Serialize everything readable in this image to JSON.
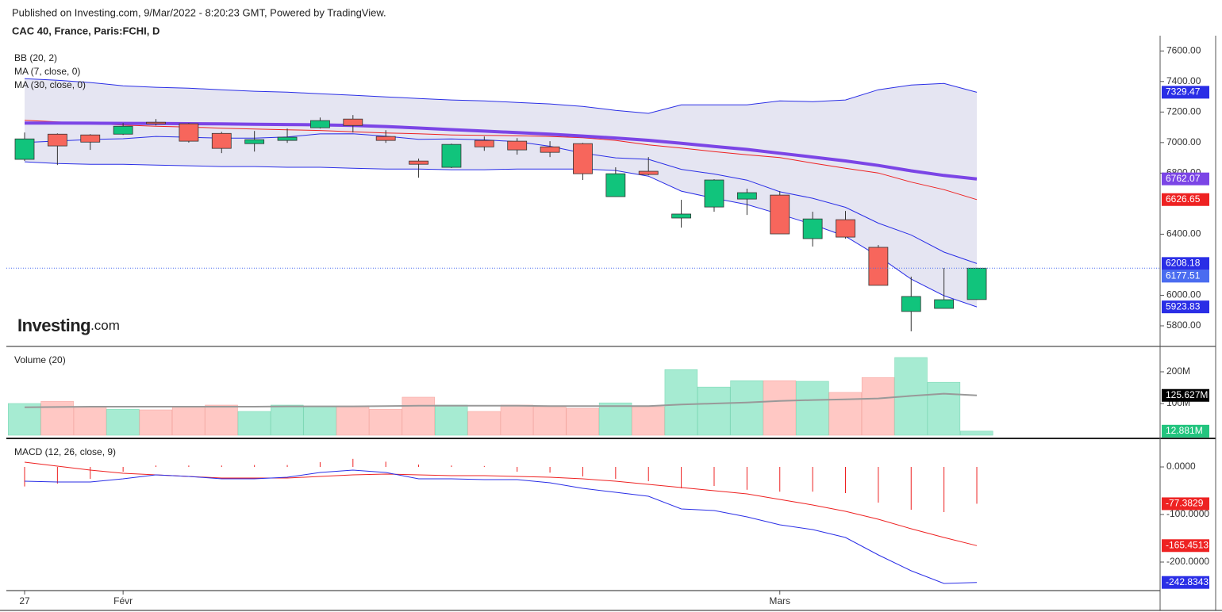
{
  "header": {
    "published": "Published on Investing.com, 9/Mar/2022 - 8:20:23 GMT, Powered by TradingView.",
    "symbol": "CAC 40, France, Paris:FCHI, D"
  },
  "logo": {
    "brand": "Investing",
    "suffix": ".com"
  },
  "chart_data": [
    {
      "type": "candlestick",
      "categories": [
        "27",
        null,
        null,
        "Févr",
        null,
        null,
        null,
        null,
        null,
        null,
        null,
        null,
        null,
        null,
        null,
        null,
        null,
        null,
        null,
        null,
        null,
        null,
        null,
        "Mars",
        null,
        null,
        null,
        null,
        null,
        null
      ],
      "open": [
        6890,
        7055,
        7050,
        7055,
        7133,
        7123,
        7060,
        6993,
        7014,
        7097,
        7154,
        7040,
        6879,
        6838,
        7014,
        7009,
        6972,
        6993,
        6646,
        6812,
        6506,
        6578,
        6630,
        6656,
        6371,
        6495,
        6314,
        5894,
        5914,
        5972
      ],
      "high": [
        7066,
        7060,
        7055,
        7128,
        7154,
        7128,
        7070,
        7076,
        7092,
        7164,
        7180,
        7081,
        6895,
        6993,
        7040,
        7029,
        7009,
        6998,
        6838,
        6905,
        6625,
        6760,
        6698,
        6682,
        6547,
        6552,
        6329,
        6122,
        6179,
        6180
      ],
      "low": [
        6880,
        6853,
        6952,
        7050,
        7112,
        7000,
        6931,
        6941,
        6998,
        7092,
        7066,
        6998,
        6770,
        6833,
        6946,
        6921,
        6905,
        6755,
        6646,
        6786,
        6443,
        6547,
        6526,
        6402,
        6319,
        6371,
        6065,
        5764,
        5914,
        5970
      ],
      "close": [
        7024,
        6978,
        7003,
        7107,
        7123,
        7009,
        6962,
        7019,
        7035,
        7144,
        7112,
        7014,
        6858,
        6988,
        6972,
        6952,
        6936,
        6796,
        6796,
        6791,
        6532,
        6755,
        6672,
        6402,
        6500,
        6381,
        6065,
        5992,
        5971,
        6177.51
      ],
      "close_label": "6177.51",
      "close_color": "#4a6cf0",
      "up_color": "#11c47c",
      "down_color": "#f7665c",
      "bands": {
        "name": "BB (20, 2)",
        "fill": "#e5e5f2",
        "color": "#2a2ee6",
        "upper": {
          "values": [
            7418,
            7408,
            7393,
            7372,
            7362,
            7356,
            7346,
            7336,
            7330,
            7320,
            7310,
            7299,
            7289,
            7279,
            7273,
            7263,
            7253,
            7237,
            7211,
            7191,
            7247,
            7247,
            7247,
            7273,
            7268,
            7279,
            7346,
            7377,
            7387,
            7329.47
          ],
          "last_label": "7329.47"
        },
        "basis": {
          "values": [
            7146,
            7135,
            7125,
            7115,
            7107,
            7102,
            7094,
            7089,
            7084,
            7079,
            7071,
            7063,
            7058,
            7050,
            7047,
            7045,
            7040,
            7032,
            7014,
            6985,
            6964,
            6941,
            6920,
            6902,
            6866,
            6832,
            6801,
            6741,
            6692,
            6626.65
          ],
          "last_label": "6626.65",
          "color": "#ee2222"
        },
        "lower": {
          "values": [
            6874,
            6863,
            6858,
            6858,
            6853,
            6848,
            6843,
            6843,
            6838,
            6838,
            6832,
            6827,
            6827,
            6822,
            6822,
            6827,
            6827,
            6827,
            6817,
            6780,
            6682,
            6635,
            6594,
            6531,
            6464,
            6386,
            6256,
            6106,
            5997,
            5923.83
          ],
          "last_label": "5923.83"
        }
      },
      "series": [
        {
          "name": "MA (7, close, 0)",
          "color": "#2a2ee6",
          "values": [
            7000,
            7010,
            7020,
            7025,
            7040,
            7035,
            7029,
            7029,
            7037,
            7057,
            7058,
            7042,
            7021,
            7024,
            7018,
            7006,
            6976,
            6931,
            6900,
            6890,
            6825,
            6794,
            6754,
            6678,
            6635,
            6576,
            6472,
            6395,
            6283,
            6208.18
          ],
          "last_label": "6208.18"
        },
        {
          "name": "MA (30, close, 0)",
          "color": "#7b45e6",
          "values": [
            7128,
            7128,
            7127,
            7126,
            7125,
            7124,
            7122,
            7120,
            7118,
            7116,
            7112,
            7105,
            7095,
            7085,
            7075,
            7065,
            7055,
            7043,
            7030,
            7015,
            6995,
            6975,
            6955,
            6930,
            6905,
            6880,
            6850,
            6815,
            6785,
            6762.07
          ],
          "last_label": "6762.07"
        }
      ],
      "ylim": [
        5665,
        7700
      ],
      "yticks": [
        {
          "value": 7600,
          "label": "7600.00"
        },
        {
          "value": 7400,
          "label": "7400.00"
        },
        {
          "value": 7200,
          "label": "7200.00"
        },
        {
          "value": 7000,
          "label": "7000.00"
        },
        {
          "value": 6800,
          "label": "6800.00"
        },
        {
          "value": 6400,
          "label": "6400.00"
        },
        {
          "value": 6000,
          "label": "6000.00"
        },
        {
          "value": 5800,
          "label": "5800.00"
        }
      ]
    },
    {
      "type": "volume",
      "title": "Volume (20)",
      "values": [
        100,
        107,
        90,
        82,
        80,
        90,
        95,
        75,
        95,
        92,
        92,
        82,
        120,
        95,
        75,
        95,
        90,
        85,
        102,
        90,
        207,
        152,
        172,
        172,
        170,
        135,
        182,
        245,
        167,
        12.881
      ],
      "last_label": "12.881M",
      "up_color": "#a6ebd2",
      "down_color": "#ffc8c4",
      "last_color": "#22c47e",
      "ma": {
        "color": "#999999",
        "values": [
          88,
          89,
          90,
          90,
          90,
          90,
          90,
          90,
          91,
          91,
          91,
          92,
          93,
          93,
          93,
          93,
          92,
          92,
          92,
          92,
          97,
          100,
          103,
          108,
          111,
          113,
          116,
          124,
          131,
          125.627
        ],
        "last_label": "125.627M",
        "badge_color": "#000000"
      },
      "ylim": [
        -10,
        277.5
      ],
      "yticks": [
        {
          "value": 100,
          "label": "100M"
        },
        {
          "value": 200,
          "label": "200M"
        }
      ]
    },
    {
      "type": "macd",
      "title": "MACD (12, 26, close, 9)",
      "macd": {
        "color": "#2a2ee6",
        "values": [
          -30,
          -31.7,
          -31.7,
          -25,
          -16.7,
          -20,
          -25,
          -25,
          -21.7,
          -11.7,
          -6.7,
          -11.7,
          -25,
          -25,
          -26.7,
          -26.7,
          -33.3,
          -45,
          -53.3,
          -61.7,
          -88.3,
          -91.7,
          -105,
          -121.7,
          -131.7,
          -148.3,
          -185,
          -218.3,
          -245,
          -242.8343
        ],
        "last_label": "-242.8343"
      },
      "signal": {
        "color": "#ee2222",
        "values": [
          10,
          1.7,
          -6.7,
          -13.3,
          -16.7,
          -20,
          -23.3,
          -23.3,
          -23.3,
          -20,
          -16.7,
          -15,
          -16.7,
          -18.3,
          -18.3,
          -20,
          -21.7,
          -25,
          -30,
          -36.7,
          -43.3,
          -50,
          -56.7,
          -68.3,
          -80,
          -93.3,
          -110,
          -130,
          -148.3,
          -165.4513
        ],
        "last_label": "-165.4513"
      },
      "histogram": {
        "color": "#ee2222",
        "values": [
          -41,
          -35,
          -25,
          -10,
          3,
          3,
          3,
          4,
          4,
          10,
          17,
          11,
          5,
          3,
          2,
          -10,
          -12,
          -20,
          -25,
          -30,
          -45,
          -40,
          -48,
          -52,
          -52,
          -55,
          -75,
          -90,
          -95,
          -77.3829
        ],
        "last_label": "-77.3829"
      },
      "ylim": [
        -260,
        56.7
      ],
      "yticks": [
        {
          "value": 0,
          "label": "0.0000"
        },
        {
          "value": -100,
          "label": "-100.0000"
        },
        {
          "value": -200,
          "label": "-200.0000"
        }
      ]
    }
  ]
}
